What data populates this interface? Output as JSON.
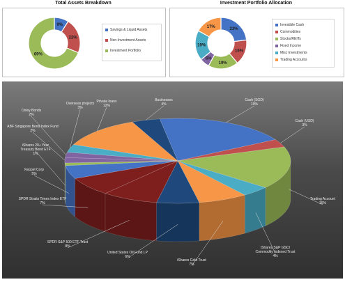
{
  "chart_data": [
    {
      "type": "pie",
      "title": "Total Assets Breakdown",
      "categories": [
        "Savings & Liquid Assets",
        "Non-Investment Assets",
        "Investment Portfolio"
      ],
      "values": [
        9,
        22,
        69
      ],
      "value_labels": [
        "9%",
        "22%",
        "69%"
      ],
      "colors": [
        "#4472c4",
        "#c0504d",
        "#9bbb59"
      ],
      "legend": "right"
    },
    {
      "type": "pie",
      "title": "Investment Portfolio Allocation",
      "categories": [
        "Investible Cash",
        "Commodities",
        "Stocks/REITs",
        "Fixed Income",
        "Misc Investments",
        "Trading Accounts"
      ],
      "values": [
        23,
        16,
        19,
        6,
        19,
        17
      ],
      "value_labels": [
        "23%",
        "16%",
        "19%",
        "6%",
        "19%",
        "17%"
      ],
      "colors": [
        "#4472c4",
        "#c0504d",
        "#9bbb59",
        "#8064a2",
        "#4bacc6",
        "#f79646"
      ],
      "legend": "right"
    },
    {
      "type": "pie",
      "title": "",
      "categories": [
        "Cash (SGD)",
        "Cash (USD)",
        "Trading Account",
        "iShares S&P GSCI Commodity Indexed Trust",
        "iShares Gold Trust",
        "United States Oil Fund LP",
        "SPDR S&P 500 ETF Trust",
        "SPDR Straits Times Index ETF",
        "Keppel Corp",
        "iShares 20+ Year Treasury Bond ETF",
        "ABF Singapore Bond Index Fund",
        "Oxley Bonds",
        "Overseas projects",
        "Private loans",
        "Businesses"
      ],
      "values": [
        19,
        3,
        16,
        4,
        7,
        6,
        8,
        7,
        5,
        1,
        2,
        2,
        3,
        12,
        4
      ],
      "value_labels": [
        "19%",
        "3%",
        "16%",
        "4%",
        "7%",
        "6%",
        "8%",
        "7%",
        "5%",
        "1%",
        "2%",
        "2%",
        "3%",
        "12%",
        "4%"
      ],
      "colors": [
        "#4472c4",
        "#c0504d",
        "#9bbb59",
        "#4bacc6",
        "#f79646",
        "#1f497d",
        "#7f1f1d",
        "#7f1f1d",
        "#4472c4",
        "#9bbb59",
        "#8064a2",
        "#8064a2",
        "#4bacc6",
        "#f79646",
        "#1f497d"
      ],
      "style": "3d"
    }
  ]
}
